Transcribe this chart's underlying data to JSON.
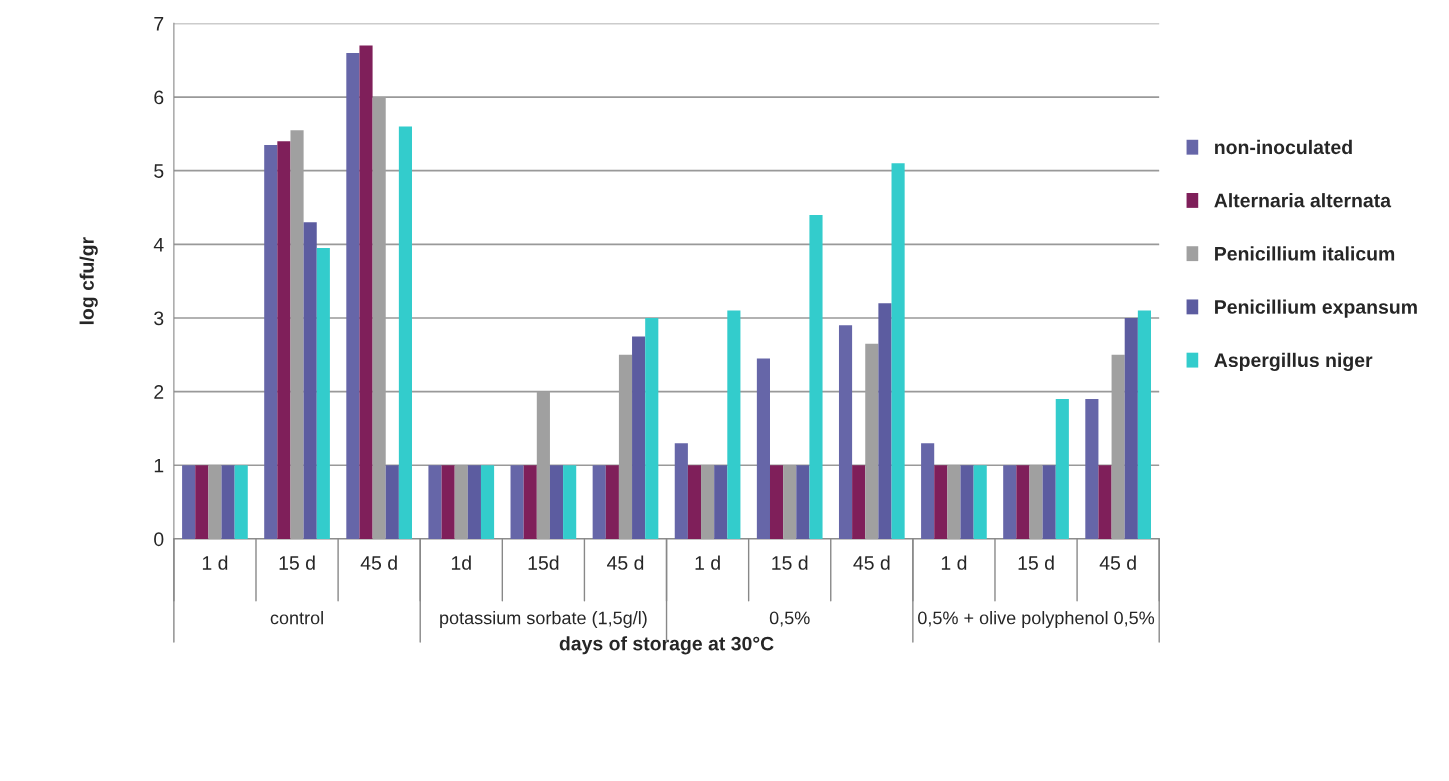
{
  "chart_data": {
    "type": "bar",
    "xlabel": "days of storage at 30°C",
    "ylabel": "log cfu/gr",
    "categories": [
      "1 d",
      "15 d",
      "45 d",
      "1d",
      "15d",
      "45 d",
      "1 d",
      "15 d",
      "45 d",
      "1 d",
      "15 d",
      "45 d"
    ],
    "annotations": [
      "control",
      "potassium sorbate (1,5g/l)",
      "0,5%",
      "0,5% + olive polyphenol 0,5%"
    ],
    "series": [
      {
        "name": "non-inoculated",
        "color": "#6666a8",
        "values": [
          1,
          5.35,
          6.6,
          1,
          1,
          1,
          1.3,
          2.45,
          2.9,
          1.3,
          1,
          1.9
        ]
      },
      {
        "name": "Alternaria alternata",
        "color": "#7f1f5a",
        "values": [
          1,
          5.4,
          6.7,
          1,
          1,
          1,
          1,
          1,
          1,
          1,
          1,
          1
        ]
      },
      {
        "name": "Penicillium italicum",
        "color": "#a0a0a0",
        "values": [
          1,
          5.55,
          6.0,
          1,
          2,
          2.5,
          1,
          1,
          2.65,
          1,
          1,
          2.5
        ]
      },
      {
        "name": "Penicillium expansum",
        "color": "#5c5ca0",
        "values": [
          1,
          4.3,
          1,
          1,
          1,
          2.75,
          1,
          1,
          3.2,
          1,
          1,
          3.0
        ]
      },
      {
        "name": "Aspergillus niger",
        "color": "#33cccc",
        "values": [
          1,
          3.95,
          5.6,
          1,
          1,
          3.0,
          3.1,
          4.4,
          5.1,
          1,
          1.9,
          3.1
        ]
      }
    ],
    "ylim": [
      0,
      7
    ],
    "yticks": [
      0,
      1,
      2,
      3,
      4,
      5,
      6,
      7
    ],
    "grid": "y",
    "legend": "right"
  }
}
